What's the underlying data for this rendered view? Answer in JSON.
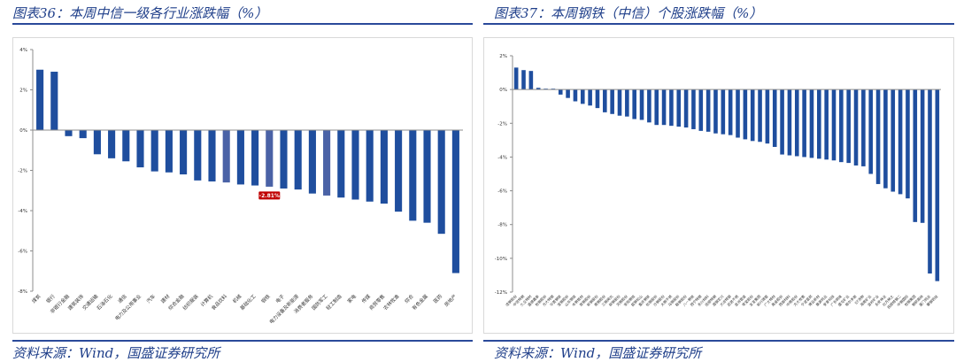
{
  "panels": [
    {
      "title": "图表36：本周中信一级各行业涨跌幅（%）",
      "source": "资料来源：Wind，国盛证券研究所",
      "chart_data": {
        "type": "bar",
        "categories": [
          "煤炭",
          "银行",
          "非银行金融",
          "建筑装饰",
          "交通运输",
          "石油石化",
          "通信",
          "电力及公用事业",
          "汽车",
          "建材",
          "综合金融",
          "纺织服装",
          "计算机",
          "食品饮料",
          "机械",
          "基础化工",
          "钢铁",
          "电子",
          "电力设备及新能源",
          "消费者服务",
          "国防军工",
          "轻工制造",
          "家电",
          "传媒",
          "商贸零售",
          "农林牧渔",
          "综合",
          "有色金属",
          "医药",
          "房地产"
        ],
        "values": [
          3.0,
          2.9,
          -0.3,
          -0.4,
          -1.2,
          -1.4,
          -1.55,
          -1.85,
          -2.05,
          -2.1,
          -2.2,
          -2.5,
          -2.55,
          -2.6,
          -2.7,
          -2.75,
          -2.81,
          -2.9,
          -2.95,
          -3.15,
          -3.25,
          -3.35,
          -3.45,
          -3.55,
          -3.65,
          -4.05,
          -4.5,
          -4.6,
          -5.15,
          -7.1
        ],
        "highlight": [
          13,
          16,
          20
        ],
        "annotation": {
          "index": 16,
          "text": "-2.81%"
        },
        "ylim": [
          -8,
          4
        ],
        "yticks": [
          4,
          2,
          0,
          -2,
          -4,
          -6,
          -8
        ],
        "ytick_labels": [
          "4%",
          "2%",
          "0%",
          "-2%",
          "-4%",
          "-6%",
          "-8%"
        ],
        "bar_color": "#1f4e9e",
        "highlight_color": "#4a62a6",
        "annotation_color": "#c00000",
        "grid": false
      }
    },
    {
      "title": "图表37：本周钢铁（中信）个股涨跌幅（%）",
      "source": "资料来源：Wind，国盛证券研究所",
      "chart_data": {
        "type": "bar",
        "categories": [
          "凌钢股份",
          "中信特钢",
          "久立特材",
          "盛德鑫泰",
          "包钢股份",
          "方大特钢",
          "华菱钢铁",
          "宝钢股份",
          "山东钢铁",
          "本钢板材",
          "首钢股份",
          "新钢股份",
          "南钢股份",
          "三钢闽光",
          "柳钢股份",
          "河钢股份",
          "安阳钢铁",
          "韶钢松山",
          "重庆钢铁",
          "杭钢股份",
          "沙钢股份",
          "太钢不锈",
          "马钢股份",
          "鞍钢股份",
          "八一钢铁",
          "西宁特钢",
          "永兴材料",
          "抚顺特钢",
          "酒钢宏兴",
          "大冶特钢",
          "武进不锈",
          "金洲管道",
          "常宝股份",
          "友发集团",
          "新兴铸管",
          "广大特材",
          "甬金股份",
          "西部材料",
          "中南股份",
          "方大炭素",
          "宁波富邦",
          "博云新材",
          "章源钨业",
          "安泰科技",
          "广东明珠",
          "盛屯矿业",
          "鄂尔多斯",
          "ST浩物",
          "海南矿业",
          "金岭矿业",
          "永安林业",
          "北方稀土",
          "抚顺特钢二",
          "中钢国际",
          "包钢集团",
          "钢研高纳",
          "厦门钨业",
          "攀钢钒钛"
        ],
        "values": [
          1.3,
          1.15,
          1.1,
          0.1,
          0.05,
          0.05,
          -0.3,
          -0.5,
          -0.7,
          -0.85,
          -0.95,
          -1.1,
          -1.35,
          -1.45,
          -1.55,
          -1.6,
          -1.75,
          -1.8,
          -1.95,
          -2.1,
          -2.1,
          -2.15,
          -2.2,
          -2.25,
          -2.35,
          -2.45,
          -2.5,
          -2.6,
          -2.65,
          -2.7,
          -2.85,
          -2.95,
          -3.05,
          -3.1,
          -3.2,
          -3.4,
          -3.85,
          -3.9,
          -3.95,
          -4.0,
          -4.05,
          -4.1,
          -4.15,
          -4.2,
          -4.3,
          -4.35,
          -4.5,
          -4.55,
          -5.0,
          -5.6,
          -5.85,
          -6.05,
          -6.2,
          -6.45,
          -7.85,
          -7.9,
          -10.9,
          -11.35
        ],
        "ylim": [
          -12,
          2
        ],
        "yticks": [
          2,
          0,
          -2,
          -4,
          -6,
          -8,
          -10,
          -12
        ],
        "ytick_labels": [
          "2%",
          "0%",
          "-2%",
          "-4%",
          "-6%",
          "-8%",
          "-10%",
          "-12%"
        ],
        "bar_color": "#1f4e9e",
        "grid": false
      }
    }
  ]
}
